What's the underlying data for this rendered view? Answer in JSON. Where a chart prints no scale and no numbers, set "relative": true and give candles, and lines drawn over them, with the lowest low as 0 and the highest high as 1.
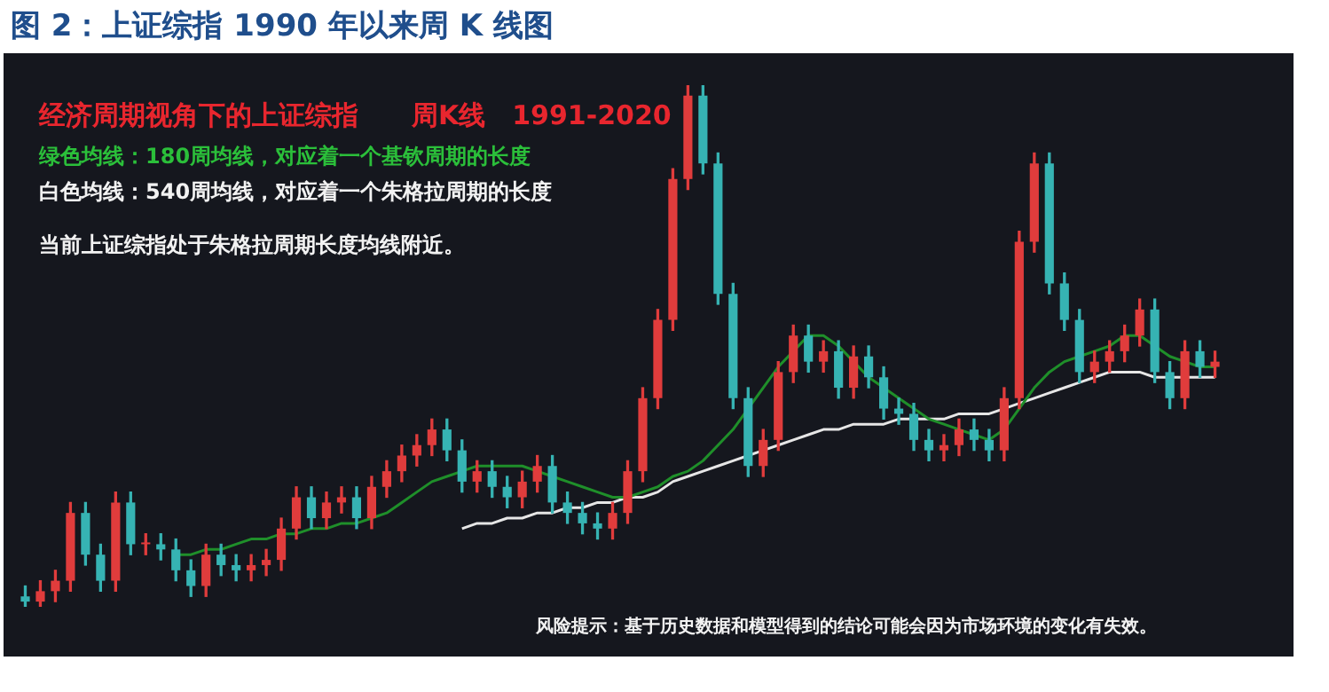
{
  "chart_data": {
    "type": "candlestick",
    "relative": true,
    "tick_labels": false,
    "title": "图 2：上证综指 1990 年以来周 K 线图",
    "annotations": [
      "经济周期视角下的上证综指　　周K线　1991-2020",
      "绿色均线：180周均线，对应着一个基钦周期的长度",
      "白色均线：540周均线，对应着一个朱格拉周期的长度",
      "当前上证综指处于朱格拉周期长度均线附近。",
      "风险提示：基于历史数据和模型得到的结论可能会因为市场环境的变化有失效。"
    ],
    "categories": [
      null,
      null,
      null,
      null,
      null,
      null,
      null,
      null,
      null,
      null,
      null,
      null,
      null,
      null,
      null,
      null,
      null,
      null,
      null,
      null,
      null,
      null,
      null,
      null,
      null,
      null,
      null,
      null,
      null,
      null,
      null,
      null,
      null,
      null,
      null,
      null,
      null,
      null,
      null,
      null,
      null,
      null,
      null,
      null,
      null,
      null,
      null,
      null,
      null,
      null,
      null,
      null,
      null,
      null,
      null,
      null,
      null,
      null,
      null,
      null,
      null,
      null,
      null,
      null,
      null,
      null,
      null,
      null,
      null,
      null,
      null,
      null,
      null,
      null,
      null,
      null,
      null,
      null,
      null,
      null
    ],
    "ohlc": [
      [
        0.02,
        0.04,
        0,
        0.01
      ],
      [
        0.01,
        0.05,
        0,
        0.03
      ],
      [
        0.03,
        0.07,
        0.01,
        0.05
      ],
      [
        0.05,
        0.2,
        0.03,
        0.18
      ],
      [
        0.18,
        0.2,
        0.08,
        0.1
      ],
      [
        0.1,
        0.12,
        0.03,
        0.05
      ],
      [
        0.05,
        0.22,
        0.03,
        0.2
      ],
      [
        0.2,
        0.22,
        0.1,
        0.12
      ],
      [
        0.12,
        0.14,
        0.1,
        0.12
      ],
      [
        0.12,
        0.14,
        0.09,
        0.11
      ],
      [
        0.11,
        0.13,
        0.05,
        0.07
      ],
      [
        0.07,
        0.09,
        0.02,
        0.04
      ],
      [
        0.04,
        0.12,
        0.02,
        0.1
      ],
      [
        0.1,
        0.12,
        0.06,
        0.08
      ],
      [
        0.08,
        0.1,
        0.05,
        0.07
      ],
      [
        0.07,
        0.1,
        0.05,
        0.08
      ],
      [
        0.08,
        0.11,
        0.06,
        0.09
      ],
      [
        0.09,
        0.17,
        0.07,
        0.15
      ],
      [
        0.15,
        0.23,
        0.13,
        0.21
      ],
      [
        0.21,
        0.23,
        0.15,
        0.17
      ],
      [
        0.17,
        0.22,
        0.15,
        0.2
      ],
      [
        0.2,
        0.23,
        0.18,
        0.21
      ],
      [
        0.21,
        0.23,
        0.15,
        0.17
      ],
      [
        0.17,
        0.25,
        0.15,
        0.23
      ],
      [
        0.23,
        0.28,
        0.21,
        0.26
      ],
      [
        0.26,
        0.31,
        0.24,
        0.29
      ],
      [
        0.29,
        0.33,
        0.27,
        0.31
      ],
      [
        0.31,
        0.36,
        0.29,
        0.34
      ],
      [
        0.34,
        0.36,
        0.28,
        0.3
      ],
      [
        0.3,
        0.32,
        0.22,
        0.24
      ],
      [
        0.24,
        0.28,
        0.22,
        0.26
      ],
      [
        0.26,
        0.28,
        0.21,
        0.23
      ],
      [
        0.23,
        0.25,
        0.19,
        0.21
      ],
      [
        0.21,
        0.26,
        0.19,
        0.24
      ],
      [
        0.24,
        0.29,
        0.22,
        0.27
      ],
      [
        0.27,
        0.29,
        0.18,
        0.2
      ],
      [
        0.2,
        0.22,
        0.16,
        0.18
      ],
      [
        0.18,
        0.2,
        0.14,
        0.16
      ],
      [
        0.16,
        0.18,
        0.13,
        0.15
      ],
      [
        0.15,
        0.2,
        0.13,
        0.18
      ],
      [
        0.18,
        0.28,
        0.16,
        0.26
      ],
      [
        0.26,
        0.42,
        0.24,
        0.4
      ],
      [
        0.4,
        0.57,
        0.38,
        0.55
      ],
      [
        0.55,
        0.84,
        0.53,
        0.82
      ],
      [
        0.82,
        1,
        0.8,
        0.98
      ],
      [
        0.98,
        1,
        0.83,
        0.85
      ],
      [
        0.85,
        0.87,
        0.58,
        0.6
      ],
      [
        0.6,
        0.62,
        0.38,
        0.4
      ],
      [
        0.4,
        0.42,
        0.25,
        0.27
      ],
      [
        0.27,
        0.34,
        0.25,
        0.32
      ],
      [
        0.32,
        0.47,
        0.3,
        0.45
      ],
      [
        0.45,
        0.54,
        0.43,
        0.52
      ],
      [
        0.52,
        0.54,
        0.45,
        0.47
      ],
      [
        0.47,
        0.51,
        0.45,
        0.49
      ],
      [
        0.49,
        0.51,
        0.4,
        0.42
      ],
      [
        0.42,
        0.5,
        0.4,
        0.48
      ],
      [
        0.48,
        0.5,
        0.42,
        0.44
      ],
      [
        0.44,
        0.46,
        0.36,
        0.38
      ],
      [
        0.38,
        0.4,
        0.35,
        0.37
      ],
      [
        0.37,
        0.39,
        0.3,
        0.32
      ],
      [
        0.32,
        0.34,
        0.28,
        0.3
      ],
      [
        0.3,
        0.33,
        0.28,
        0.31
      ],
      [
        0.31,
        0.36,
        0.29,
        0.34
      ],
      [
        0.34,
        0.36,
        0.3,
        0.32
      ],
      [
        0.32,
        0.34,
        0.28,
        0.3
      ],
      [
        0.3,
        0.42,
        0.28,
        0.4
      ],
      [
        0.4,
        0.72,
        0.38,
        0.7
      ],
      [
        0.7,
        0.87,
        0.68,
        0.85
      ],
      [
        0.85,
        0.87,
        0.6,
        0.62
      ],
      [
        0.62,
        0.64,
        0.53,
        0.55
      ],
      [
        0.55,
        0.57,
        0.43,
        0.45
      ],
      [
        0.45,
        0.49,
        0.43,
        0.47
      ],
      [
        0.47,
        0.51,
        0.45,
        0.49
      ],
      [
        0.49,
        0.54,
        0.47,
        0.52
      ],
      [
        0.52,
        0.59,
        0.5,
        0.57
      ],
      [
        0.57,
        0.59,
        0.43,
        0.45
      ],
      [
        0.45,
        0.47,
        0.38,
        0.4
      ],
      [
        0.4,
        0.51,
        0.38,
        0.49
      ],
      [
        0.49,
        0.51,
        0.44,
        0.46
      ],
      [
        0.46,
        0.49,
        0.44,
        0.47
      ]
    ],
    "colors": [
      "#36b3b3",
      "#e03c3c",
      "#e03c3c",
      "#e03c3c",
      "#36b3b3",
      "#36b3b3",
      "#e03c3c",
      "#36b3b3",
      "#e03c3c",
      "#36b3b3",
      "#36b3b3",
      "#36b3b3",
      "#e03c3c",
      "#36b3b3",
      "#36b3b3",
      "#e03c3c",
      "#e03c3c",
      "#e03c3c",
      "#e03c3c",
      "#36b3b3",
      "#e03c3c",
      "#e03c3c",
      "#36b3b3",
      "#e03c3c",
      "#e03c3c",
      "#e03c3c",
      "#e03c3c",
      "#e03c3c",
      "#36b3b3",
      "#36b3b3",
      "#e03c3c",
      "#36b3b3",
      "#36b3b3",
      "#e03c3c",
      "#e03c3c",
      "#36b3b3",
      "#36b3b3",
      "#36b3b3",
      "#36b3b3",
      "#e03c3c",
      "#e03c3c",
      "#e03c3c",
      "#e03c3c",
      "#e03c3c",
      "#e03c3c",
      "#36b3b3",
      "#36b3b3",
      "#36b3b3",
      "#36b3b3",
      "#e03c3c",
      "#e03c3c",
      "#e03c3c",
      "#36b3b3",
      "#e03c3c",
      "#36b3b3",
      "#e03c3c",
      "#36b3b3",
      "#36b3b3",
      "#36b3b3",
      "#36b3b3",
      "#36b3b3",
      "#e03c3c",
      "#e03c3c",
      "#36b3b3",
      "#36b3b3",
      "#e03c3c",
      "#e03c3c",
      "#e03c3c",
      "#36b3b3",
      "#36b3b3",
      "#36b3b3",
      "#e03c3c",
      "#e03c3c",
      "#e03c3c",
      "#e03c3c",
      "#36b3b3",
      "#36b3b3",
      "#e03c3c",
      "#36b3b3",
      "#e03c3c"
    ],
    "series": [
      {
        "type": "line",
        "color": "#1f8f2a",
        "values": [
          null,
          null,
          null,
          null,
          null,
          null,
          null,
          null,
          null,
          null,
          0.1,
          0.1,
          0.11,
          0.11,
          0.12,
          0.13,
          0.13,
          0.14,
          0.14,
          0.15,
          0.15,
          0.16,
          0.16,
          0.17,
          0.18,
          0.2,
          0.22,
          0.24,
          0.25,
          0.26,
          0.27,
          0.27,
          0.27,
          0.27,
          0.26,
          0.25,
          0.24,
          0.23,
          0.22,
          0.21,
          0.21,
          0.22,
          0.23,
          0.25,
          0.26,
          0.28,
          0.31,
          0.34,
          0.38,
          0.42,
          0.46,
          0.49,
          0.52,
          0.52,
          0.5,
          0.47,
          0.44,
          0.42,
          0.4,
          0.38,
          0.36,
          0.35,
          0.34,
          0.33,
          0.32,
          0.34,
          0.38,
          0.42,
          0.45,
          0.47,
          0.48,
          0.49,
          0.5,
          0.52,
          0.52,
          0.5,
          0.48,
          0.47,
          0.46,
          0.46
        ]
      },
      {
        "type": "line",
        "color": "#e6e6e6",
        "values": [
          null,
          null,
          null,
          null,
          null,
          null,
          null,
          null,
          null,
          null,
          null,
          null,
          null,
          null,
          null,
          null,
          null,
          null,
          null,
          null,
          null,
          null,
          null,
          null,
          null,
          null,
          null,
          null,
          null,
          0.15,
          0.16,
          0.16,
          0.17,
          0.17,
          0.18,
          0.18,
          0.19,
          0.19,
          0.2,
          0.2,
          0.21,
          0.21,
          0.22,
          0.24,
          0.25,
          0.26,
          0.27,
          0.28,
          0.29,
          0.3,
          0.31,
          0.32,
          0.33,
          0.34,
          0.34,
          0.35,
          0.35,
          0.35,
          0.36,
          0.36,
          0.36,
          0.36,
          0.37,
          0.37,
          0.37,
          0.38,
          0.39,
          0.4,
          0.41,
          0.42,
          0.43,
          0.44,
          0.45,
          0.45,
          0.45,
          0.44,
          0.44,
          0.44,
          0.44,
          0.44
        ]
      }
    ]
  }
}
